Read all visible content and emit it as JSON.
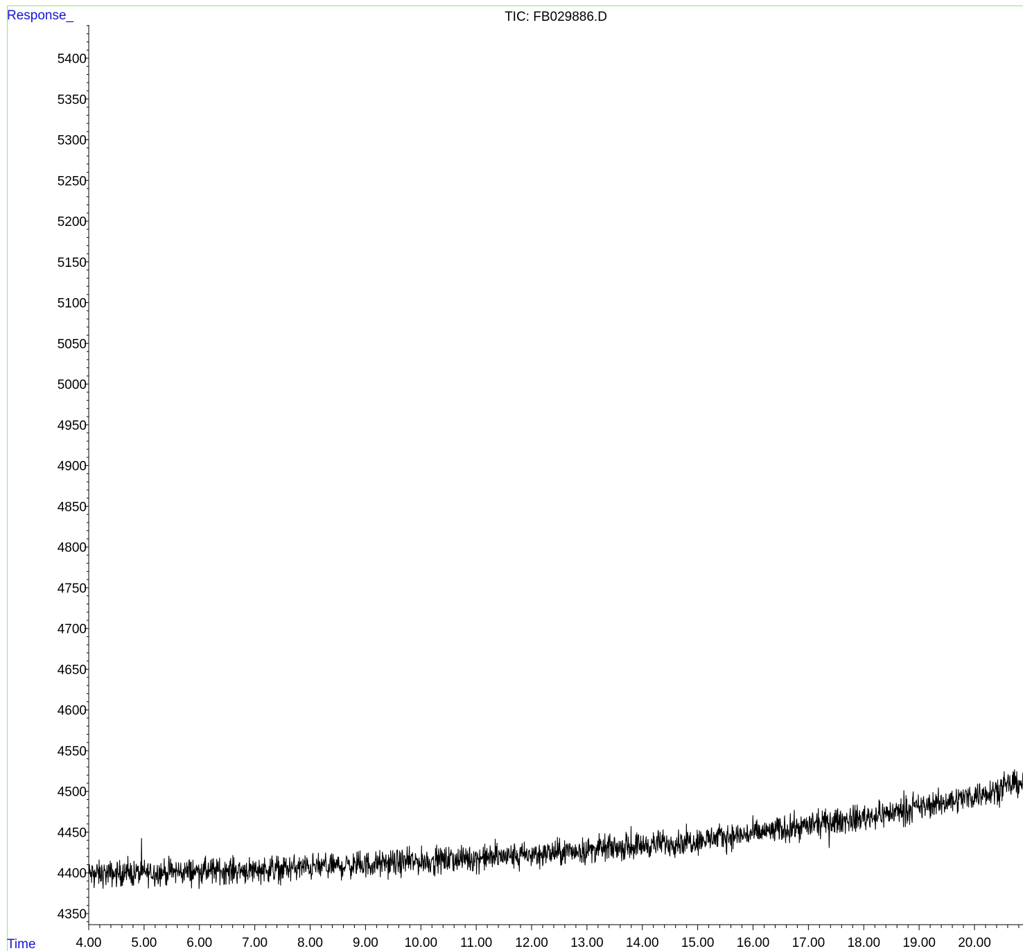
{
  "chart_data": {
    "type": "line",
    "title": "TIC: FB029886.D",
    "ylabel": "Response_",
    "xlabel": "Time",
    "xlim": [
      4.0,
      20.88
    ],
    "ylim": [
      4333,
      5440
    ],
    "x_ticks": [
      "4.00",
      "5.00",
      "6.00",
      "7.00",
      "8.00",
      "9.00",
      "10.00",
      "11.00",
      "12.00",
      "13.00",
      "14.00",
      "15.00",
      "16.00",
      "17.00",
      "18.00",
      "19.00",
      "20.00"
    ],
    "y_ticks": [
      "4350",
      "4400",
      "4450",
      "4500",
      "4550",
      "4600",
      "4650",
      "4700",
      "4750",
      "4800",
      "4850",
      "4900",
      "4950",
      "5000",
      "5050",
      "5100",
      "5150",
      "5200",
      "5250",
      "5300",
      "5350",
      "5400"
    ],
    "grid": false,
    "series": [
      {
        "x": [
          4.0,
          5.0,
          6.0,
          7.0,
          8.0,
          9.0,
          10.0,
          11.0,
          12.0,
          13.0,
          14.0,
          15.0,
          16.0,
          17.0,
          18.0,
          19.0,
          20.0,
          20.88
        ],
        "values": [
          4398,
          4400,
          4402,
          4404,
          4407,
          4410,
          4414,
          4418,
          4422,
          4428,
          4434,
          4440,
          4448,
          4458,
          4468,
          4480,
          4495,
          4512
        ]
      }
    ],
    "line_color": "#000000"
  }
}
